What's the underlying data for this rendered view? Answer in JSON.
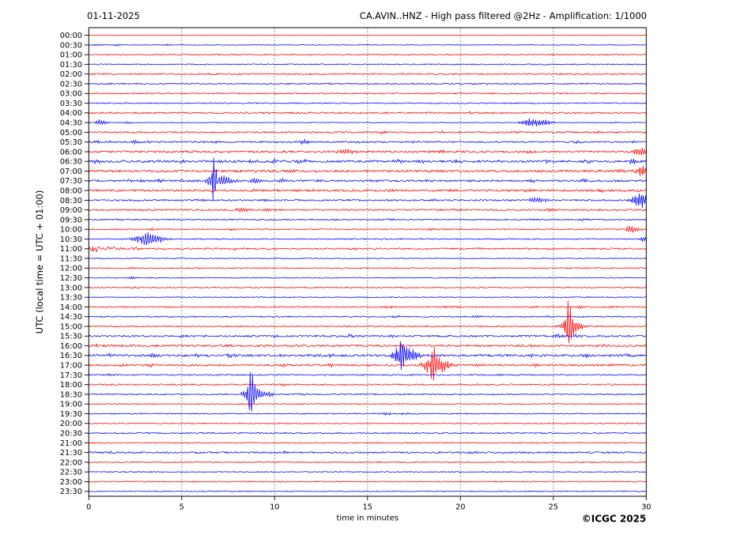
{
  "header": {
    "date": "01-11-2025",
    "title": "CA.AVIN..HNZ - High pass filtered @2Hz - Amplification: 1/1000"
  },
  "axes": {
    "y_label": "UTC (local time = UTC + 01:00)",
    "x_label": "time in minutes",
    "x_ticks": [
      0,
      5,
      10,
      15,
      20,
      25,
      30
    ],
    "x_range": [
      0,
      30
    ],
    "grid_minutes": [
      5,
      10,
      15,
      20,
      25
    ]
  },
  "footer": {
    "copyright": "©ICGC 2025"
  },
  "colors": {
    "trace_red": "#ff0000",
    "trace_blue": "#0000ff",
    "grid": "#777777",
    "axis": "#000000",
    "background": "#ffffff"
  },
  "chart_data": {
    "type": "helicorder-seismogram",
    "station_channel": "CA.AVIN..HNZ",
    "filter": "High pass filtered @2Hz",
    "amplification": "1/1000",
    "date": "01-11-2025",
    "minutes_per_row": 30,
    "row_times_utc_note": "rows are 30-minute traces, alternating red/blue, events listed as [minute, amplitude_px, duration_min, optional 'n'=noise-type]",
    "rows": [
      {
        "time": "00:00",
        "color": "red",
        "noise": 0.35,
        "events": []
      },
      {
        "time": "00:30",
        "color": "blue",
        "noise": 0.45,
        "events": [
          [
            0.4,
            1.6,
            0.3
          ],
          [
            1.5,
            1.6,
            0.3
          ],
          [
            4.1,
            1.4,
            0.3
          ]
        ]
      },
      {
        "time": "01:00",
        "color": "red",
        "noise": 0.75,
        "events": []
      },
      {
        "time": "01:30",
        "color": "blue",
        "noise": 0.7,
        "events": []
      },
      {
        "time": "02:00",
        "color": "red",
        "noise": 0.9,
        "events": []
      },
      {
        "time": "02:30",
        "color": "blue",
        "noise": 0.85,
        "events": []
      },
      {
        "time": "03:00",
        "color": "red",
        "noise": 0.85,
        "events": []
      },
      {
        "time": "03:30",
        "color": "blue",
        "noise": 0.75,
        "events": []
      },
      {
        "time": "04:00",
        "color": "red",
        "noise": 1.0,
        "events": [
          [
            20.5,
            1.5,
            0.4
          ],
          [
            27.0,
            1.3,
            0.3
          ]
        ]
      },
      {
        "time": "04:30",
        "color": "blue",
        "noise": 0.5,
        "events": [
          [
            0.55,
            4,
            0.4
          ],
          [
            2.1,
            1.5,
            0.3
          ],
          [
            23.7,
            5.5,
            0.8
          ],
          [
            24.6,
            2.8,
            0.5
          ],
          [
            28.2,
            1.2,
            0.3
          ]
        ]
      },
      {
        "time": "05:00",
        "color": "red",
        "noise": 1.0,
        "events": [
          [
            15.8,
            1.8,
            0.3
          ],
          [
            18.9,
            1.5,
            0.3
          ],
          [
            23.1,
            1.5,
            0.3
          ],
          [
            27.4,
            1.6,
            0.3
          ]
        ]
      },
      {
        "time": "05:30",
        "color": "blue",
        "noise": 0.95,
        "events": [
          [
            0.4,
            2.4,
            0.3
          ],
          [
            1.2,
            2.0,
            0.3
          ],
          [
            2.4,
            2.2,
            0.4
          ],
          [
            3.2,
            2.0,
            0.3
          ],
          [
            6.9,
            2.0,
            0.3
          ],
          [
            11.5,
            3.2,
            0.4
          ],
          [
            14.5,
            1.8,
            0.3
          ],
          [
            17.5,
            1.8,
            0.3
          ],
          [
            26.2,
            1.8,
            0.3
          ],
          [
            29.2,
            1.8,
            0.3
          ]
        ]
      },
      {
        "time": "06:00",
        "color": "red",
        "noise": 1.3,
        "events": [
          [
            13.7,
            4,
            0.7
          ],
          [
            19.0,
            2,
            0.35
          ],
          [
            23.5,
            2,
            0.3
          ],
          [
            29.55,
            5,
            0.6
          ]
        ]
      },
      {
        "time": "06:30",
        "color": "blue",
        "noise": 1.4,
        "events": [
          [
            0.4,
            2.4,
            0.3
          ],
          [
            3.7,
            2.4,
            0.3
          ],
          [
            5.0,
            2.2,
            0.3
          ],
          [
            7.0,
            2.2,
            0.3
          ],
          [
            8.8,
            2.2,
            0.3
          ],
          [
            10.0,
            2.4,
            0.3
          ],
          [
            11.4,
            2.8,
            0.35
          ],
          [
            13.3,
            2.2,
            0.3
          ],
          [
            16.5,
            2.8,
            0.35
          ],
          [
            17.8,
            2.4,
            0.3
          ],
          [
            19.8,
            2.4,
            0.3
          ],
          [
            22.1,
            2.2,
            0.3
          ],
          [
            24.7,
            2.4,
            0.3
          ],
          [
            26.8,
            2.2,
            0.3
          ],
          [
            29.2,
            4,
            0.25
          ]
        ]
      },
      {
        "time": "07:00",
        "color": "red",
        "noise": 1.4,
        "events": [
          [
            10.9,
            2.0,
            0.3
          ],
          [
            14.9,
            2.5,
            0.3
          ],
          [
            28.6,
            2.2,
            0.35
          ],
          [
            29.72,
            7,
            0.5
          ]
        ]
      },
      {
        "time": "07:30",
        "color": "blue",
        "noise": 1.15,
        "events": [
          [
            0.5,
            1.8,
            0.3
          ],
          [
            1.3,
            1.8,
            0.3
          ],
          [
            2.0,
            1.8,
            0.3
          ],
          [
            2.8,
            1.8,
            0.3
          ],
          [
            3.8,
            2.2,
            0.3
          ],
          [
            5.0,
            1.8,
            0.3
          ],
          [
            5.8,
            2.0,
            0.3
          ],
          [
            6.75,
            10,
            0.8
          ],
          [
            6.73,
            29,
            0.18
          ],
          [
            7.75,
            3.2,
            0.4
          ],
          [
            8.9,
            4,
            0.4
          ],
          [
            10.3,
            3,
            0.35
          ],
          [
            12.4,
            1.8,
            0.3
          ],
          [
            15.3,
            1.8,
            0.3
          ],
          [
            18.1,
            1.8,
            0.3
          ],
          [
            20.4,
            1.8,
            0.3
          ],
          [
            23.9,
            2,
            0.3
          ],
          [
            26.6,
            2,
            0.3
          ],
          [
            28.4,
            1.8,
            0.3
          ]
        ]
      },
      {
        "time": "08:00",
        "color": "red",
        "noise": 1.3,
        "events": [
          [
            8.9,
            2.0,
            0.3
          ],
          [
            12.1,
            1.8,
            0.3
          ],
          [
            16.2,
            1.8,
            0.3
          ],
          [
            19.6,
            1.8,
            0.3
          ],
          [
            23.6,
            1.8,
            0.3
          ],
          [
            27.6,
            1.8,
            0.3
          ]
        ]
      },
      {
        "time": "08:30",
        "color": "blue",
        "noise": 1.0,
        "events": [
          [
            2.5,
            1.6,
            0.3
          ],
          [
            6.0,
            1.6,
            0.3
          ],
          [
            9.5,
            1.6,
            0.3
          ],
          [
            14.0,
            1.6,
            0.3
          ],
          [
            18.6,
            1.6,
            0.3
          ],
          [
            24.0,
            4,
            0.6
          ],
          [
            29.62,
            10,
            0.7
          ]
        ]
      },
      {
        "time": "09:00",
        "color": "red",
        "noise": 1.0,
        "events": [
          [
            3.0,
            1.5,
            0.3
          ],
          [
            8.2,
            3.5,
            0.5
          ],
          [
            9.6,
            1.8,
            0.3
          ],
          [
            19.6,
            1.5,
            0.3
          ],
          [
            24.7,
            1.5,
            0.3
          ]
        ]
      },
      {
        "time": "09:30",
        "color": "blue",
        "noise": 0.8,
        "events": [
          [
            16.2,
            1.5,
            0.3
          ],
          [
            23.9,
            1.6,
            0.3
          ],
          [
            26.5,
            1.5,
            0.3
          ]
        ]
      },
      {
        "time": "10:00",
        "color": "red",
        "noise": 0.8,
        "events": [
          [
            3.4,
            1.5,
            0.25
          ],
          [
            7.6,
            1.6,
            0.25
          ],
          [
            18.5,
            1.4,
            0.25
          ],
          [
            29.1,
            5,
            0.5
          ]
        ]
      },
      {
        "time": "10:30",
        "color": "blue",
        "noise": 0.75,
        "events": [
          [
            2.95,
            10,
            0.95
          ],
          [
            2.9,
            14,
            0.28
          ],
          [
            29.85,
            4,
            0.3
          ]
        ]
      },
      {
        "time": "11:00",
        "color": "red",
        "noise": 1.0,
        "events": [
          [
            0.3,
            3.5,
            0.6,
            "n"
          ],
          [
            1.2,
            2.6,
            0.8,
            "n"
          ],
          [
            2.3,
            1.8,
            0.6,
            "n"
          ],
          [
            7.7,
            1.5,
            0.3
          ],
          [
            14.2,
            1.4,
            0.3
          ],
          [
            21.0,
            1.4,
            0.3
          ]
        ]
      },
      {
        "time": "11:30",
        "color": "blue",
        "noise": 0.6,
        "events": []
      },
      {
        "time": "12:00",
        "color": "red",
        "noise": 0.7,
        "events": [
          [
            2.3,
            1.0,
            0.3
          ],
          [
            5.9,
            1.0,
            0.3
          ]
        ]
      },
      {
        "time": "12:30",
        "color": "blue",
        "noise": 0.6,
        "events": [
          [
            2.3,
            1.6,
            0.3
          ]
        ]
      },
      {
        "time": "13:00",
        "color": "red",
        "noise": 0.7,
        "events": [
          [
            2.5,
            1.2,
            0.3
          ]
        ]
      },
      {
        "time": "13:30",
        "color": "blue",
        "noise": 0.6,
        "events": []
      },
      {
        "time": "14:00",
        "color": "red",
        "noise": 0.8,
        "events": [
          [
            16.1,
            1.5,
            0.4
          ],
          [
            19.2,
            1.8,
            0.5
          ],
          [
            23.9,
            1.5,
            0.3
          ],
          [
            26.4,
            1.5,
            0.3
          ],
          [
            28.1,
            1.5,
            0.3
          ]
        ]
      },
      {
        "time": "14:30",
        "color": "blue",
        "noise": 0.8,
        "events": [
          [
            16.5,
            1.6,
            0.3
          ],
          [
            20.8,
            1.6,
            0.3
          ],
          [
            24.7,
            1.6,
            0.3
          ]
        ]
      },
      {
        "time": "15:00",
        "color": "red",
        "noise": 0.85,
        "events": [
          [
            25.8,
            12,
            0.7
          ],
          [
            25.78,
            28,
            0.2
          ]
        ]
      },
      {
        "time": "15:30",
        "color": "blue",
        "noise": 1.1,
        "events": [
          [
            5.0,
            1.6,
            0.3
          ],
          [
            10.0,
            1.8,
            0.3
          ],
          [
            14.0,
            1.8,
            0.3
          ],
          [
            16.4,
            1.8,
            0.3
          ],
          [
            20.8,
            1.8,
            0.3
          ],
          [
            25.15,
            3,
            0.5
          ],
          [
            26.2,
            2,
            0.3
          ]
        ]
      },
      {
        "time": "16:00",
        "color": "red",
        "noise": 1.3,
        "events": [
          [
            0.3,
            1.8,
            0.3
          ],
          [
            7.6,
            2,
            0.3
          ],
          [
            9.7,
            1.8,
            0.3
          ],
          [
            16.8,
            2,
            0.3
          ],
          [
            23.9,
            2,
            0.3
          ],
          [
            27.6,
            2,
            0.3
          ]
        ]
      },
      {
        "time": "16:30",
        "color": "blue",
        "noise": 1.4,
        "events": [
          [
            1.1,
            1.8,
            0.3
          ],
          [
            3.4,
            3,
            0.4
          ],
          [
            5.8,
            2.5,
            0.3
          ],
          [
            7.6,
            2.5,
            0.3
          ],
          [
            10.3,
            2.5,
            0.3
          ],
          [
            12.9,
            2.5,
            0.3
          ],
          [
            16.78,
            13,
            0.85
          ],
          [
            16.75,
            28,
            0.2
          ],
          [
            20.0,
            2.2,
            0.3
          ],
          [
            23.9,
            2.5,
            0.3
          ],
          [
            26.7,
            2.5,
            0.3
          ],
          [
            29.0,
            2.5,
            0.3
          ]
        ]
      },
      {
        "time": "17:00",
        "color": "red",
        "noise": 1.2,
        "events": [
          [
            1.7,
            2,
            0.3
          ],
          [
            3.3,
            2,
            0.3
          ],
          [
            10.4,
            2.2,
            0.3
          ],
          [
            13.0,
            2,
            0.3
          ],
          [
            18.5,
            13,
            0.85
          ],
          [
            18.47,
            28,
            0.2
          ],
          [
            21.0,
            2,
            0.3
          ],
          [
            24.0,
            2.2,
            0.3
          ],
          [
            28.0,
            2,
            0.3
          ]
        ]
      },
      {
        "time": "17:30",
        "color": "blue",
        "noise": 0.8,
        "events": [
          [
            1.1,
            1.6,
            0.3
          ],
          [
            17.3,
            1.5,
            0.3
          ],
          [
            22.0,
            1.5,
            0.3
          ]
        ]
      },
      {
        "time": "18:00",
        "color": "red",
        "noise": 0.9,
        "events": [
          [
            10.4,
            2.5,
            0.4
          ]
        ]
      },
      {
        "time": "18:30",
        "color": "blue",
        "noise": 0.8,
        "events": [
          [
            8.7,
            10,
            0.75
          ],
          [
            8.68,
            33,
            0.2
          ],
          [
            9.7,
            2.5,
            0.3
          ],
          [
            11.4,
            1.8,
            0.3
          ]
        ]
      },
      {
        "time": "19:00",
        "color": "red",
        "noise": 0.7,
        "events": []
      },
      {
        "time": "19:30",
        "color": "blue",
        "noise": 0.7,
        "events": [
          [
            16.0,
            2,
            0.35
          ],
          [
            16.9,
            1.5,
            0.3
          ]
        ]
      },
      {
        "time": "20:00",
        "color": "red",
        "noise": 0.7,
        "events": []
      },
      {
        "time": "20:30",
        "color": "blue",
        "noise": 0.8,
        "events": []
      },
      {
        "time": "21:00",
        "color": "red",
        "noise": 0.7,
        "events": []
      },
      {
        "time": "21:30",
        "color": "blue",
        "noise": 1.05,
        "events": [
          [
            1.0,
            1.3,
            0.5,
            "n"
          ],
          [
            10.5,
            1.5,
            0.3
          ],
          [
            20.6,
            2,
            0.4
          ],
          [
            23.2,
            2,
            0.4
          ]
        ]
      },
      {
        "time": "22:00",
        "color": "red",
        "noise": 0.75,
        "events": []
      },
      {
        "time": "22:30",
        "color": "blue",
        "noise": 0.6,
        "events": []
      },
      {
        "time": "23:00",
        "color": "red",
        "noise": 0.7,
        "events": []
      },
      {
        "time": "23:30",
        "color": "blue",
        "noise": 0.6,
        "events": []
      }
    ]
  }
}
